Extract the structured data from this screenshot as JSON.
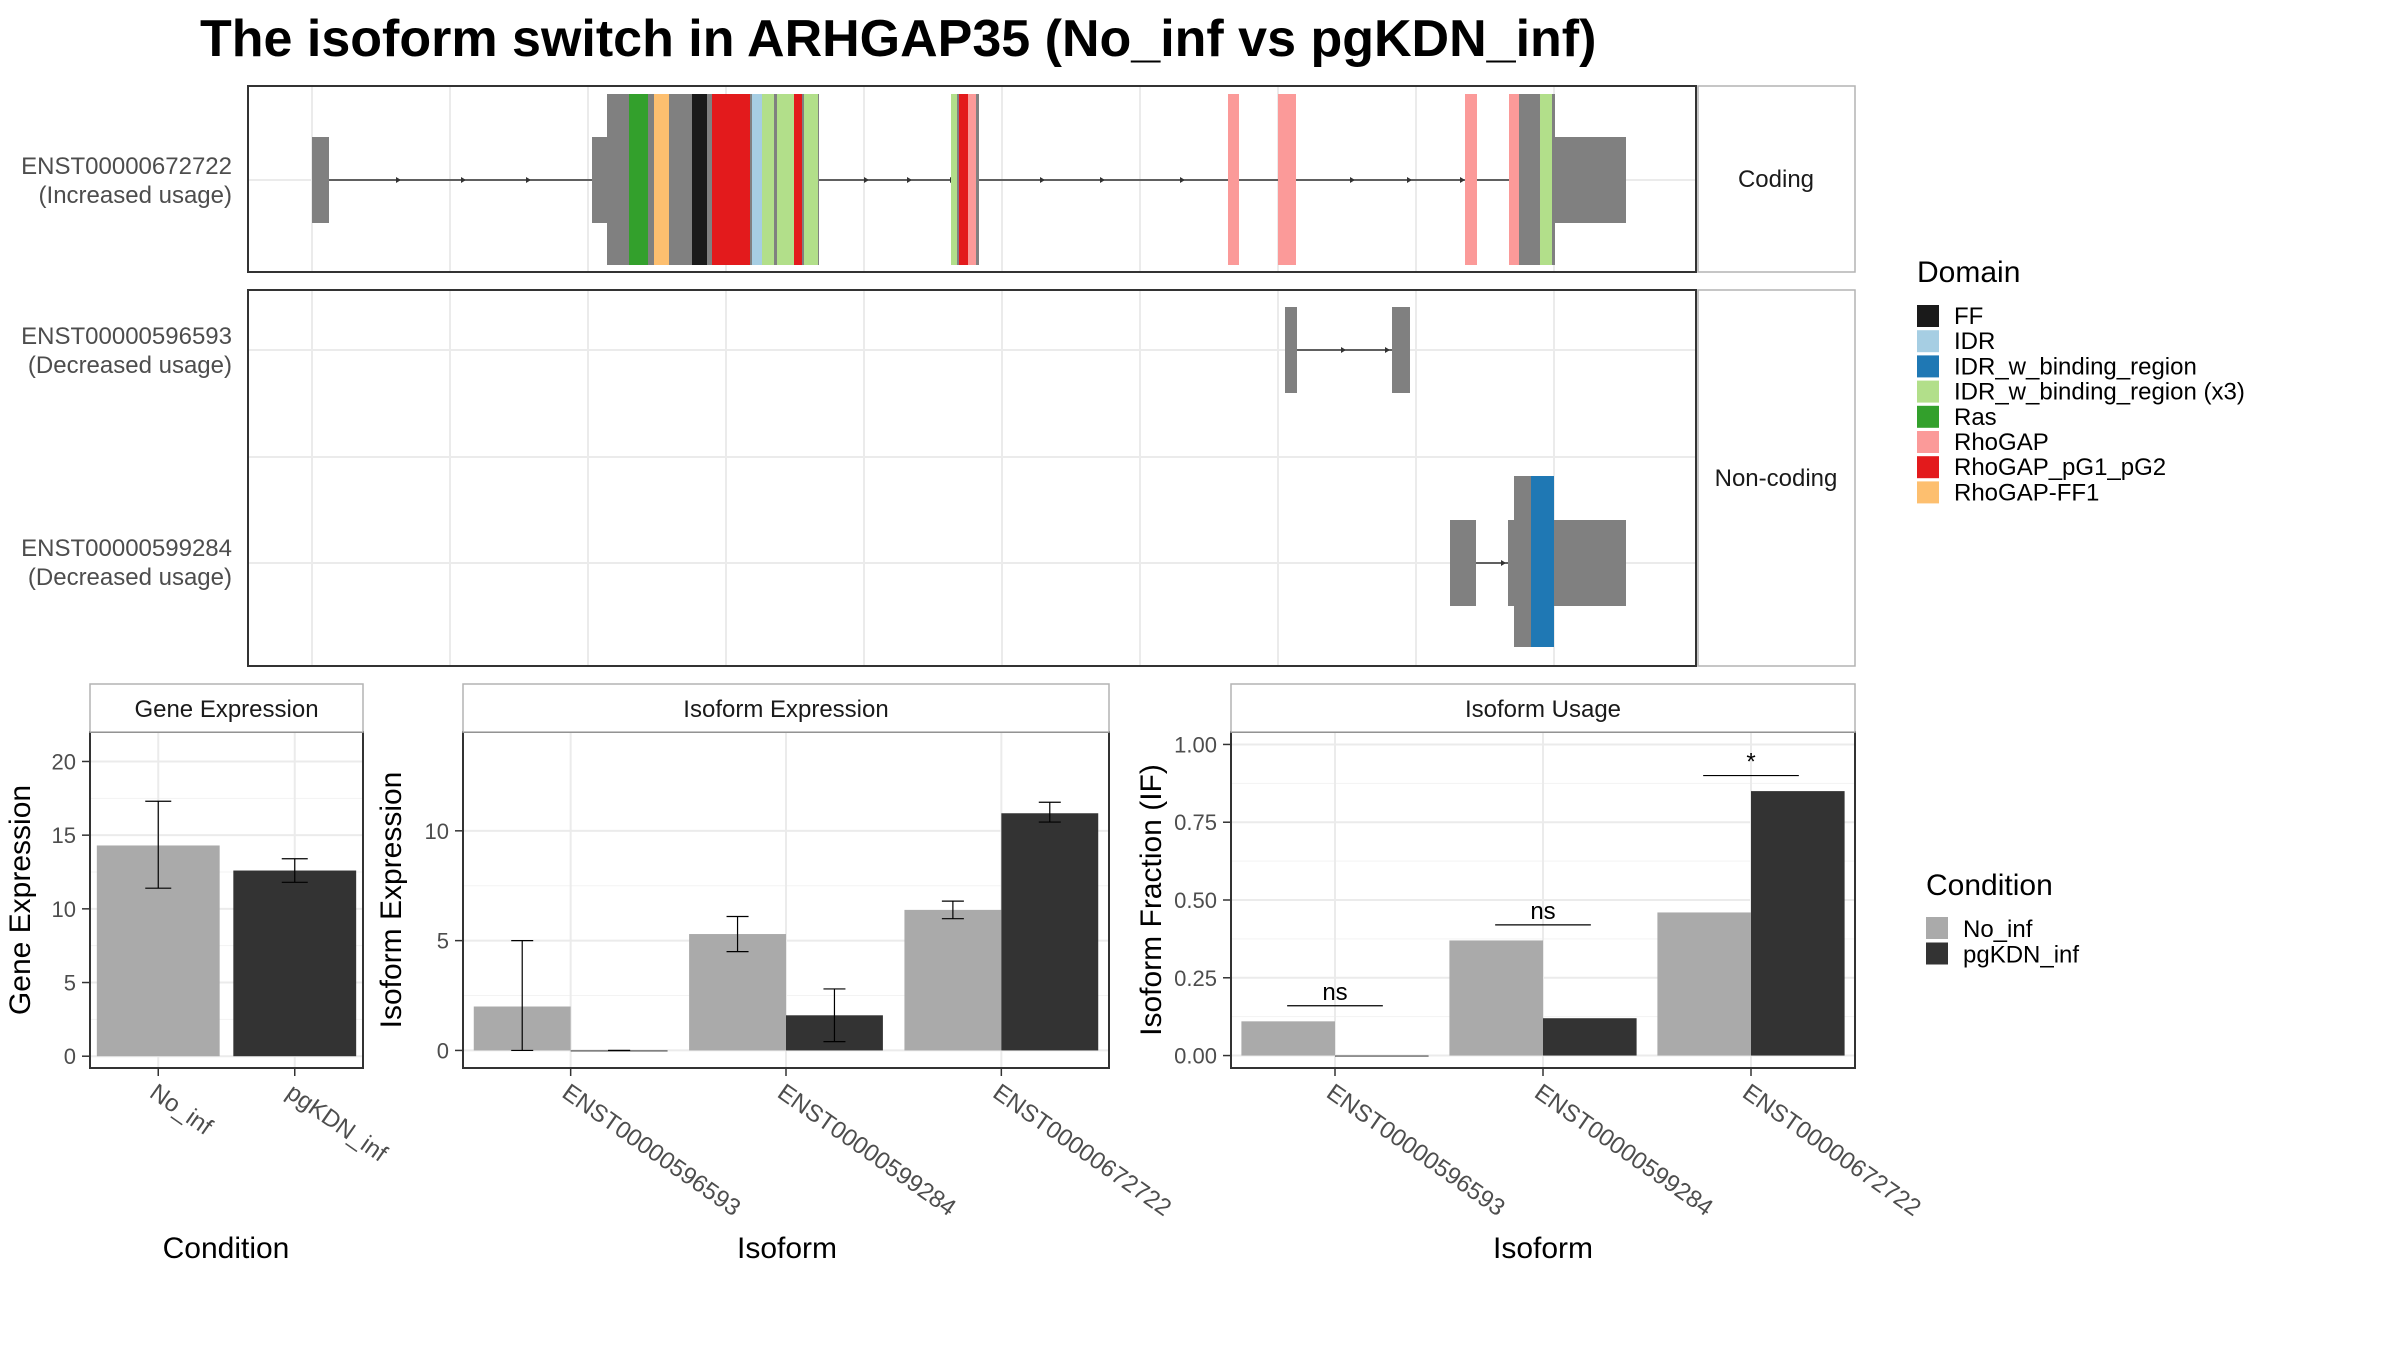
{
  "title": "The isoform switch in ARHGAP35 (No_inf vs pgKDN_inf)",
  "colors": {
    "exon": "#808080",
    "panel_border": "#333333",
    "strip_border": "#b3b3b3",
    "grid": "#ebebeb",
    "no_inf": "#aaaaaa",
    "pgkdn_inf": "#333333"
  },
  "domain_legend": {
    "title": "Domain",
    "items": [
      {
        "label": "FF",
        "color": "#1a1a1a"
      },
      {
        "label": "IDR",
        "color": "#a6cee3"
      },
      {
        "label": "IDR_w_binding_region",
        "color": "#1f78b4"
      },
      {
        "label": "IDR_w_binding_region (x3)",
        "color": "#b2df8a"
      },
      {
        "label": "Ras",
        "color": "#33a02c"
      },
      {
        "label": "RhoGAP",
        "color": "#fb9a99"
      },
      {
        "label": "RhoGAP_pG1_pG2",
        "color": "#e31a1c"
      },
      {
        "label": "RhoGAP-FF1",
        "color": "#fdbf6f"
      }
    ]
  },
  "condition_legend": {
    "title": "Condition",
    "items": [
      {
        "label": "No_inf",
        "color": "#aaaaaa"
      },
      {
        "label": "pgKDN_inf",
        "color": "#333333"
      }
    ]
  },
  "isoform_panels": {
    "strips": [
      "Coding",
      "Non-coding"
    ],
    "isoform_labels": [
      {
        "id": "ENST00000672722",
        "usage": "(Increased usage)"
      },
      {
        "id": "ENST00000596593",
        "usage": "(Decreased usage)"
      },
      {
        "id": "ENST00000599284",
        "usage": "(Decreased usage)"
      }
    ]
  },
  "chart_data": [
    {
      "type": "bar",
      "strip": "Gene Expression",
      "xlabel": "Condition",
      "ylabel": "Gene Expression",
      "categories": [
        "No_inf",
        "pgKDN_inf"
      ],
      "values": [
        14.3,
        12.6
      ],
      "error_low": [
        11.4,
        11.8
      ],
      "error_high": [
        17.3,
        13.4
      ],
      "ylim": [
        -0.8,
        22
      ],
      "yticks": [
        0,
        5,
        10,
        15,
        20
      ],
      "ytick_labels": [
        "0",
        "5",
        "10",
        "15",
        "20"
      ]
    },
    {
      "type": "bar",
      "strip": "Isoform Expression",
      "xlabel": "Isoform",
      "ylabel": "Isoform Expression",
      "categories": [
        "ENST00000596593",
        "ENST00000599284",
        "ENST00000672722"
      ],
      "series": [
        {
          "name": "No_inf",
          "values": [
            2.0,
            5.3,
            6.4
          ],
          "error_low": [
            0.0,
            4.5,
            6.0
          ],
          "error_high": [
            5.0,
            6.1,
            6.8
          ]
        },
        {
          "name": "pgKDN_inf",
          "values": [
            0.0,
            1.6,
            10.8
          ],
          "error_low": [
            0.0,
            0.4,
            10.4
          ],
          "error_high": [
            0.0,
            2.8,
            11.3
          ]
        }
      ],
      "ylim": [
        -0.8,
        14.5
      ],
      "yticks": [
        0,
        5,
        10
      ],
      "ytick_labels": [
        "0",
        "5",
        "10"
      ]
    },
    {
      "type": "bar",
      "strip": "Isoform Usage",
      "xlabel": "Isoform",
      "ylabel": "Isoform Fraction (IF)",
      "categories": [
        "ENST00000596593",
        "ENST00000599284",
        "ENST00000672722"
      ],
      "series": [
        {
          "name": "No_inf",
          "values": [
            0.11,
            0.37,
            0.46
          ]
        },
        {
          "name": "pgKDN_inf",
          "values": [
            0.0,
            0.12,
            0.85
          ]
        }
      ],
      "significance": [
        {
          "label": "ns",
          "y": 0.16
        },
        {
          "label": "ns",
          "y": 0.42
        },
        {
          "label": "*",
          "y": 0.9
        }
      ],
      "ylim": [
        -0.04,
        1.04
      ],
      "yticks": [
        0,
        0.25,
        0.5,
        0.75,
        1
      ],
      "ytick_labels": [
        "0.00",
        "0.25",
        "0.50",
        "0.75",
        "1.00"
      ]
    }
  ]
}
